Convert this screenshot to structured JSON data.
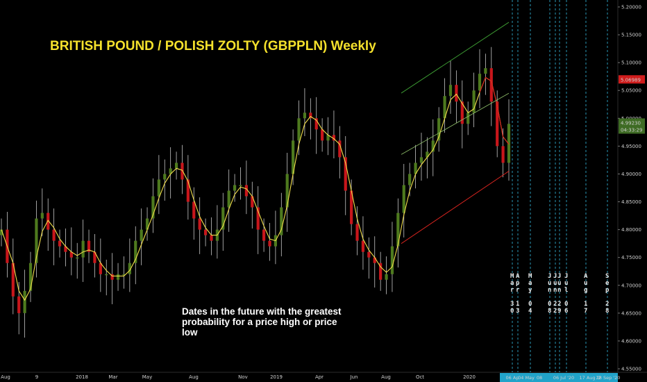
{
  "title": "BRITISH POUND / POLISH  ZOLTY (GBPPLN) Weekly",
  "note": "Dates in the future with the greatest probability for a price high or price low",
  "colors": {
    "background": "#000000",
    "title": "#f5e12c",
    "bull": "#4e7a1e",
    "bear": "#c8161b",
    "wick": "#c8c8c8",
    "ma": "#f2df4c",
    "upper_channel": "#3c9a32",
    "lower_channel": "#d2231e",
    "date_line": "#2fa7c9",
    "last_price_bg": "#d01c1c",
    "current_price_bg": "#3e6b24",
    "x_highlight": "#21a3c9"
  },
  "chart_data": {
    "type": "candlestick",
    "title": "BRITISH POUND / POLISH  ZOLTY (GBPPLN) Weekly",
    "timeframe": "Weekly",
    "ylim": [
      4.55,
      5.2
    ],
    "y_ticks": [
      "4.55000",
      "4.60000",
      "4.65000",
      "4.70000",
      "4.75000",
      "4.80000",
      "4.85000",
      "4.90000",
      "4.95000",
      "5.00000",
      "5.05000",
      "5.10000",
      "5.15000",
      "5.20000"
    ],
    "x_ticks": [
      "Aug",
      "9",
      "2018",
      "Mar",
      "May",
      "Aug",
      "Nov",
      "2019",
      "Apr",
      "Jun",
      "Aug",
      "Oct",
      "2020"
    ],
    "x_projection_ticks": [
      "06 Ap",
      "04 May",
      "08",
      "06 Jul '20",
      "17 Aug '2",
      "28 Sep '20"
    ],
    "price_labels": {
      "last": "5.06989",
      "current": "4.99230",
      "countdown": "04:33:29"
    },
    "close_path": [
      4.8,
      4.74,
      4.68,
      4.65,
      4.69,
      4.74,
      4.82,
      4.83,
      4.8,
      4.78,
      4.77,
      4.76,
      4.75,
      4.75,
      4.78,
      4.76,
      4.74,
      4.72,
      4.72,
      4.71,
      4.72,
      4.72,
      4.74,
      4.78,
      4.8,
      4.82,
      4.86,
      4.89,
      4.9,
      4.91,
      4.92,
      4.89,
      4.85,
      4.82,
      4.8,
      4.79,
      4.78,
      4.8,
      4.84,
      4.87,
      4.88,
      4.88,
      4.86,
      4.84,
      4.8,
      4.78,
      4.77,
      4.79,
      4.84,
      4.9,
      4.96,
      5.0,
      5.01,
      5.0,
      4.98,
      4.96,
      4.97,
      4.96,
      4.93,
      4.87,
      4.81,
      4.78,
      4.76,
      4.75,
      4.74,
      4.71,
      4.72,
      4.77,
      4.83,
      4.88,
      4.9,
      4.92,
      4.93,
      4.94,
      4.96,
      5.0,
      5.04,
      5.06,
      5.03,
      4.99,
      5.01,
      5.05,
      5.08,
      5.09,
      5.03,
      4.95,
      4.92,
      4.99
    ],
    "moving_average": "yellow smoothed average",
    "channels": [
      {
        "name": "upper",
        "from": [
          4.935,
          5.155
        ],
        "to": [
          5.045,
          5.175
        ]
      },
      {
        "name": "lower",
        "from": [
          4.775
        ],
        "to": [
          4.905
        ]
      }
    ],
    "future_dates": [
      {
        "month": "Mar",
        "day": "30"
      },
      {
        "month": "Apr",
        "day": "13"
      },
      {
        "month": "May",
        "day": "04"
      },
      {
        "month": "Jun",
        "day": "08"
      },
      {
        "month": "Jun",
        "day": "22"
      },
      {
        "month": "Jun",
        "day": "29"
      },
      {
        "month": "Jul",
        "day": "06"
      },
      {
        "month": "Aug",
        "day": "17"
      },
      {
        "month": "Sep",
        "day": "28"
      }
    ]
  }
}
